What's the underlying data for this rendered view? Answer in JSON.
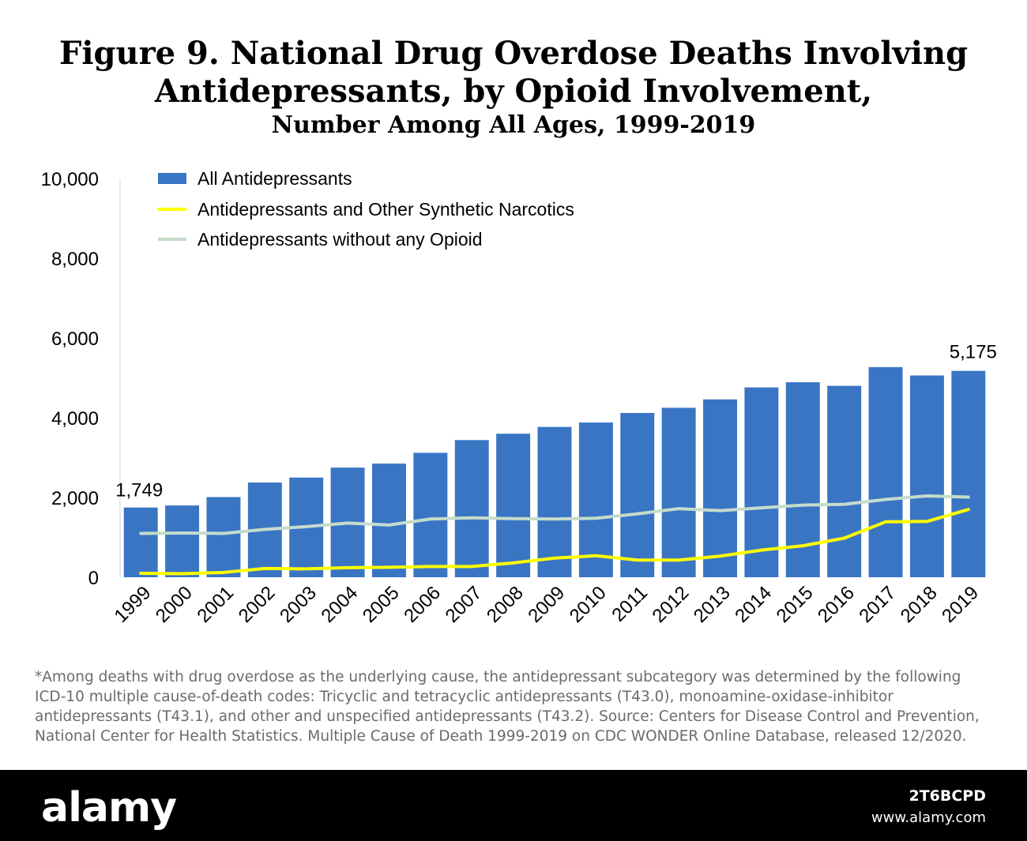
{
  "figure": {
    "title_line1": "Figure 9. National Drug Overdose Deaths Involving",
    "title_line2": "Antidepressants, by Opioid Involvement,",
    "subtitle": "Number Among All Ages, 1999-2019"
  },
  "chart_data": {
    "type": "bar",
    "categories": [
      "1999",
      "2000",
      "2001",
      "2002",
      "2003",
      "2004",
      "2005",
      "2006",
      "2007",
      "2008",
      "2009",
      "2010",
      "2011",
      "2012",
      "2013",
      "2014",
      "2015",
      "2016",
      "2017",
      "2018",
      "2019"
    ],
    "series": [
      {
        "name": "All Antidepressants",
        "type": "bar",
        "color": "#3a75c4",
        "values": [
          1749,
          1800,
          2010,
          2375,
          2500,
          2750,
          2850,
          3120,
          3440,
          3600,
          3770,
          3880,
          4120,
          4250,
          4460,
          4760,
          4890,
          4800,
          5270,
          5060,
          5175
        ]
      },
      {
        "name": "Antidepressants and Other Synthetic Narcotics",
        "type": "line",
        "color": "#ffff00",
        "values": [
          100,
          90,
          120,
          220,
          210,
          240,
          250,
          270,
          270,
          360,
          480,
          540,
          430,
          430,
          530,
          680,
          790,
          980,
          1390,
          1400,
          1700
        ]
      },
      {
        "name": "Antidepressants without any Opioid",
        "type": "line",
        "color": "#c5dccb",
        "values": [
          1100,
          1110,
          1100,
          1200,
          1270,
          1360,
          1310,
          1460,
          1490,
          1470,
          1460,
          1480,
          1590,
          1720,
          1670,
          1740,
          1810,
          1830,
          1950,
          2040,
          2010
        ]
      }
    ],
    "ylim": [
      0,
      10000
    ],
    "y_ticks": [
      "0",
      "2,000",
      "4,000",
      "6,000",
      "8,000",
      "10,000"
    ],
    "y_tick_values": [
      0,
      2000,
      4000,
      6000,
      8000,
      10000
    ],
    "data_labels": [
      {
        "category": "1999",
        "text": "1,749"
      },
      {
        "category": "2019",
        "text": "5,175"
      }
    ],
    "legend_position": "top-left",
    "grid": false,
    "xlabel": "",
    "ylabel": ""
  },
  "note": "*Among deaths with drug overdose as the underlying cause, the antidepressant subcategory was determined by the following ICD-10 multiple cause-of-death codes: Tricyclic and tetracyclic antidepressants (T43.0), monoamine-oxidase-inhibitor antidepressants (T43.1), and other and unspecified antidepressants (T43.2). Source: Centers for Disease Control and Prevention, National Center for Health Statistics. Multiple Cause of Death 1999-2019 on CDC WONDER Online Database, released 12/2020.",
  "footer": {
    "brand": "alamy",
    "image_id": "2T6BCPD",
    "url": "www.alamy.com"
  }
}
